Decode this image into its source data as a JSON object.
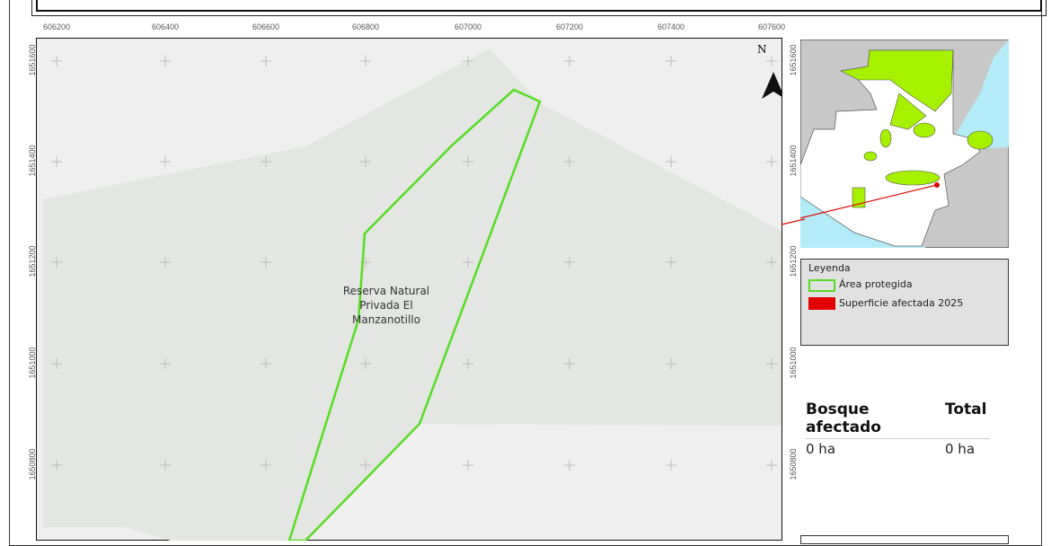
{
  "map": {
    "x_ticks": [
      "606200",
      "606400",
      "606600",
      "606800",
      "607000",
      "607200",
      "607400",
      "607600"
    ],
    "y_ticks": [
      "1651600",
      "1651400",
      "1651200",
      "1651000",
      "1650800"
    ],
    "area_label": [
      "Reserva Natural",
      "Privada El",
      "Manzanotillo"
    ],
    "north_label": "N",
    "colors": {
      "protected_outline": "#55dd22",
      "background": "#efefef",
      "forest": "#e3e6e3",
      "affected": "#e30000"
    }
  },
  "inset": {
    "colors": {
      "land": "#ffffff",
      "neighbors": "#c8c8c8",
      "water": "#b3ecf8",
      "protected": "#a6f000"
    }
  },
  "legend": {
    "title": "Leyenda",
    "items": [
      {
        "label": "Área protegida",
        "swatch": "outline",
        "color": "#55dd22"
      },
      {
        "label": "Superficie afectada 2025",
        "swatch": "fill",
        "color": "#e30000"
      }
    ]
  },
  "table": {
    "headers": [
      "Bosque afectado",
      "Total"
    ],
    "row": [
      "0 ha",
      "0 ha"
    ]
  }
}
